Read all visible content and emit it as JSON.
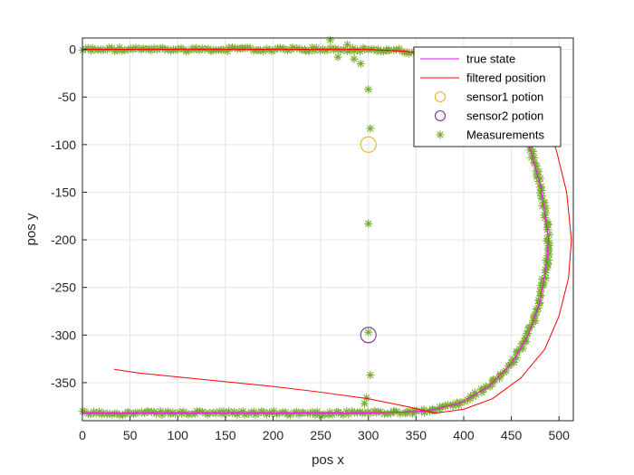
{
  "chart_data": {
    "type": "line",
    "xlabel": "pos x",
    "ylabel": "pos y",
    "xlim": [
      0,
      515
    ],
    "ylim": [
      -390,
      12
    ],
    "xticks": [
      0,
      50,
      100,
      150,
      200,
      250,
      300,
      350,
      400,
      450,
      500
    ],
    "yticks": [
      0,
      -50,
      -100,
      -150,
      -200,
      -250,
      -300,
      -350
    ],
    "grid": true,
    "legend": {
      "placement": "top-right",
      "entries": [
        "true state",
        "filtered position",
        "sensor1 potion",
        "sensor2 potion",
        "Measurements"
      ]
    },
    "series": [
      {
        "name": "true state",
        "kind": "line",
        "color": "#ff00ff",
        "points": [
          [
            0,
            0
          ],
          [
            100,
            0
          ],
          [
            200,
            0
          ],
          [
            300,
            0
          ],
          [
            340,
            -2
          ],
          [
            380,
            -8
          ],
          [
            410,
            -20
          ],
          [
            435,
            -40
          ],
          [
            455,
            -70
          ],
          [
            470,
            -105
          ],
          [
            481,
            -145
          ],
          [
            487,
            -185
          ],
          [
            489,
            -200
          ],
          [
            487,
            -225
          ],
          [
            480,
            -265
          ],
          [
            468,
            -300
          ],
          [
            450,
            -330
          ],
          [
            425,
            -355
          ],
          [
            395,
            -372
          ],
          [
            360,
            -380
          ],
          [
            300,
            -382
          ],
          [
            200,
            -382
          ],
          [
            100,
            -382
          ],
          [
            0,
            -382
          ]
        ]
      },
      {
        "name": "filtered position",
        "kind": "line",
        "color": "#ff0000",
        "points": [
          [
            0,
            0
          ],
          [
            100,
            0
          ],
          [
            200,
            0
          ],
          [
            300,
            0
          ],
          [
            340,
            -2
          ],
          [
            385,
            -10
          ],
          [
            420,
            -22
          ],
          [
            455,
            -42
          ],
          [
            480,
            -70
          ],
          [
            497,
            -105
          ],
          [
            508,
            -150
          ],
          [
            513,
            -200
          ],
          [
            510,
            -240
          ],
          [
            500,
            -280
          ],
          [
            485,
            -315
          ],
          [
            460,
            -345
          ],
          [
            430,
            -367
          ],
          [
            400,
            -378
          ],
          [
            370,
            -382
          ],
          [
            340,
            -375
          ],
          [
            300,
            -367
          ],
          [
            250,
            -360
          ],
          [
            200,
            -354
          ],
          [
            150,
            -349
          ],
          [
            100,
            -344
          ],
          [
            60,
            -340
          ],
          [
            33,
            -336
          ]
        ]
      },
      {
        "name": "sensor1 potion",
        "kind": "marker",
        "color": "#edb120",
        "points": [
          [
            300,
            -100
          ]
        ]
      },
      {
        "name": "sensor2 potion",
        "kind": "marker",
        "color": "#7e2f8e",
        "points": [
          [
            300,
            -300
          ]
        ]
      },
      {
        "name": "Measurements",
        "kind": "scatter",
        "color": "#77ac30",
        "points": [
          [
            285,
            -10
          ],
          [
            300,
            -42
          ],
          [
            302,
            -83
          ],
          [
            300,
            -183
          ],
          [
            300,
            -297
          ],
          [
            302,
            -342
          ],
          [
            296,
            -372
          ],
          [
            298,
            -366
          ],
          [
            260,
            10
          ],
          [
            278,
            5
          ],
          [
            268,
            -8
          ],
          [
            292,
            -15
          ]
        ],
        "noisy_track": {
          "x_start": 0,
          "x_end": 320,
          "upper_y": 0,
          "lower_y": -382,
          "noise": 4,
          "arc_path": [
            [
              320,
              0
            ],
            [
              340,
              -2
            ],
            [
              380,
              -8
            ],
            [
              410,
              -20
            ],
            [
              435,
              -40
            ],
            [
              455,
              -70
            ],
            [
              470,
              -105
            ],
            [
              481,
              -145
            ],
            [
              487,
              -185
            ],
            [
              489,
              -200
            ],
            [
              487,
              -225
            ],
            [
              480,
              -265
            ],
            [
              468,
              -300
            ],
            [
              450,
              -330
            ],
            [
              425,
              -355
            ],
            [
              395,
              -372
            ],
            [
              360,
              -380
            ],
            [
              320,
              -382
            ]
          ]
        }
      }
    ]
  }
}
